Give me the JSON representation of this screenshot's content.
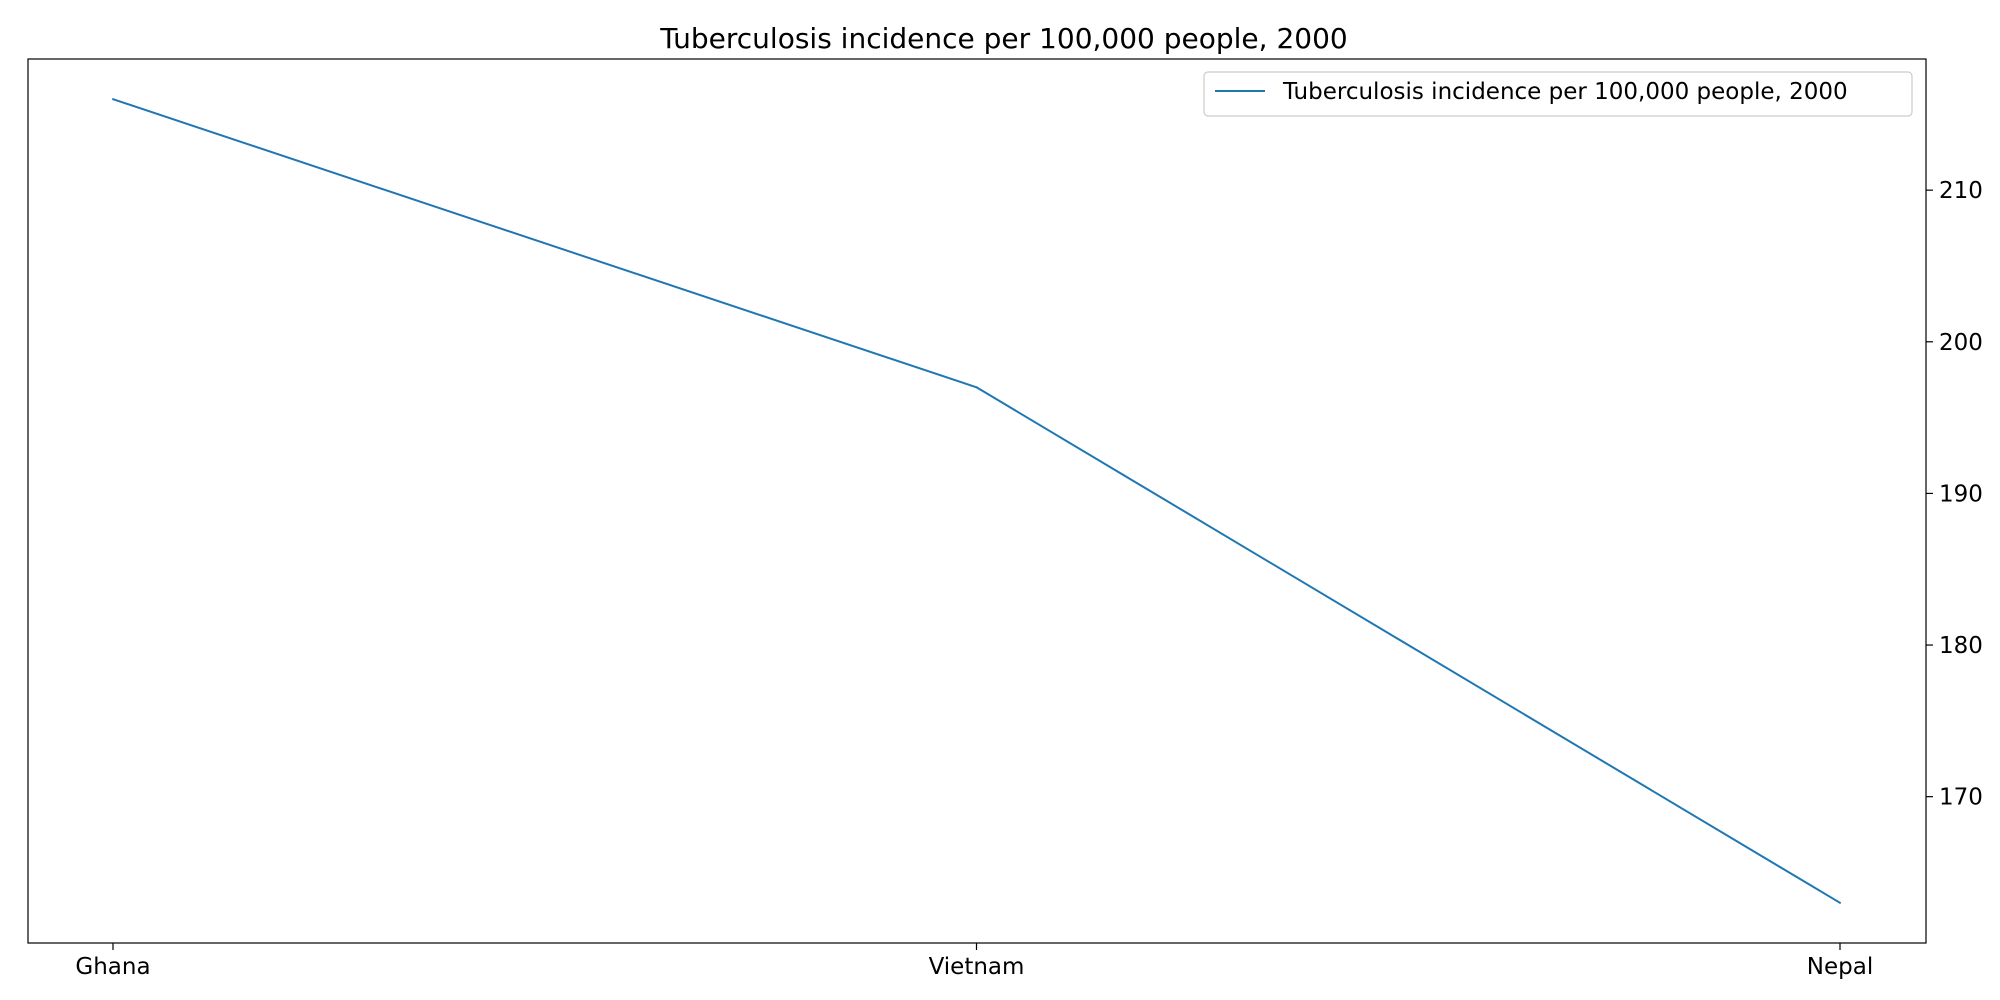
{
  "chart_data": {
    "type": "line",
    "title": "Tuberculosis incidence per 100,000 people, 2000",
    "xlabel": "",
    "ylabel": "",
    "categories": [
      "Ghana",
      "Vietnam",
      "Nepal"
    ],
    "series": [
      {
        "name": "Tuberculosis incidence per 100,000 people, 2000",
        "values": [
          216,
          197,
          163
        ],
        "color": "#1f77b4"
      }
    ],
    "ylim": [
      160.35,
      218.65
    ],
    "yticks": [
      170,
      180,
      190,
      200,
      210
    ],
    "y_axis_side": "right",
    "grid": false,
    "legend": "upper-right"
  }
}
